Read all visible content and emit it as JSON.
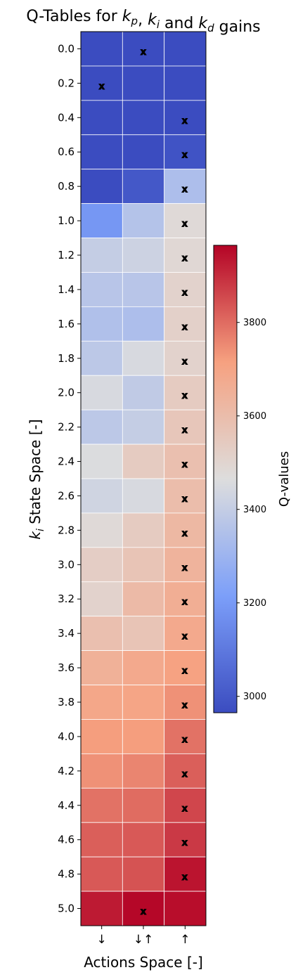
{
  "chart_data": {
    "type": "heatmap",
    "title_parts": [
      "Q-Tables for ",
      "k",
      "p",
      ", ",
      "k",
      "i",
      " and ",
      "k",
      "d",
      " gains"
    ],
    "xlabel": "Actions Space [-]",
    "ylabel_parts": [
      "k",
      "i",
      " State Space [-]"
    ],
    "x_categories": [
      "↓",
      "↓↑",
      "↑"
    ],
    "y_categories": [
      "0.0",
      "0.2",
      "0.4",
      "0.6",
      "0.8",
      "1.0",
      "1.2",
      "1.4",
      "1.6",
      "1.8",
      "2.0",
      "2.2",
      "2.4",
      "2.6",
      "2.8",
      "3.0",
      "3.2",
      "3.4",
      "3.6",
      "3.8",
      "4.0",
      "4.2",
      "4.4",
      "4.6",
      "4.8",
      "5.0"
    ],
    "values": [
      [
        2965,
        2965,
        2965
      ],
      [
        2965,
        2965,
        2965
      ],
      [
        2965,
        2965,
        2965
      ],
      [
        2965,
        2965,
        2985
      ],
      [
        2965,
        3000,
        3340
      ],
      [
        3190,
        3360,
        3480
      ],
      [
        3400,
        3420,
        3490
      ],
      [
        3370,
        3370,
        3510
      ],
      [
        3350,
        3340,
        3520
      ],
      [
        3380,
        3450,
        3510
      ],
      [
        3450,
        3390,
        3540
      ],
      [
        3380,
        3400,
        3560
      ],
      [
        3460,
        3540,
        3590
      ],
      [
        3430,
        3450,
        3600
      ],
      [
        3480,
        3540,
        3620
      ],
      [
        3530,
        3570,
        3640
      ],
      [
        3510,
        3610,
        3660
      ],
      [
        3590,
        3570,
        3680
      ],
      [
        3650,
        3680,
        3710
      ],
      [
        3690,
        3700,
        3740
      ],
      [
        3720,
        3720,
        3790
      ],
      [
        3740,
        3760,
        3820
      ],
      [
        3790,
        3800,
        3860
      ],
      [
        3820,
        3830,
        3880
      ],
      [
        3830,
        3840,
        3940
      ],
      [
        3930,
        3960,
        3950
      ]
    ],
    "markers": [
      1,
      0,
      2,
      2,
      2,
      2,
      2,
      2,
      2,
      2,
      2,
      2,
      2,
      2,
      2,
      2,
      2,
      2,
      2,
      2,
      2,
      2,
      2,
      2,
      2,
      1
    ],
    "marker_symbol": "x",
    "colormap": "coolwarm",
    "colorbar": {
      "label": "Q-values",
      "vmin": 2965,
      "vmax": 3965,
      "ticks": [
        3000,
        3200,
        3400,
        3600,
        3800
      ]
    },
    "grid": true
  }
}
